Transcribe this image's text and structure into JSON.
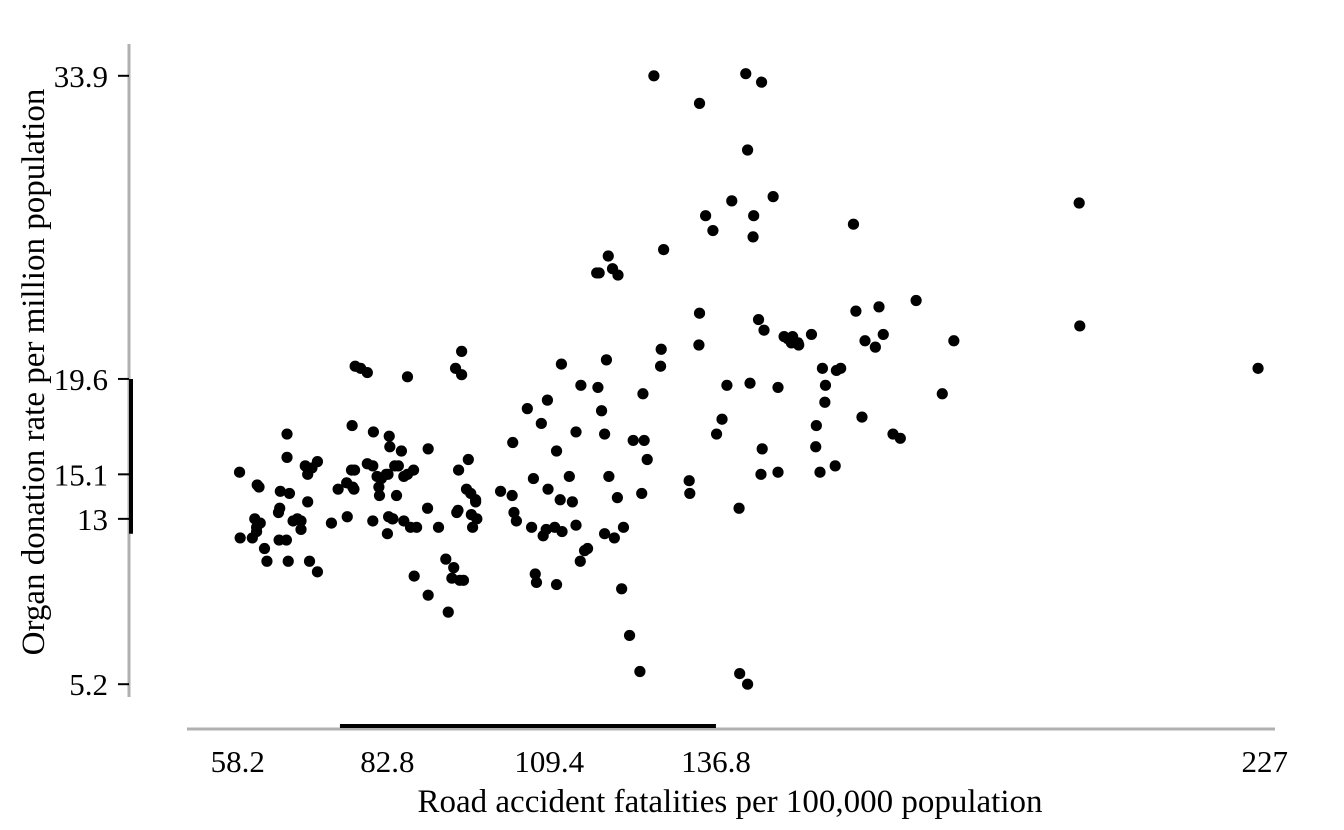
{
  "chart_data": {
    "type": "scatter",
    "xlabel": "Road accident fatalities per 100,000 population",
    "ylabel": "Organ donation rate per million population",
    "x_ticks": [
      58.2,
      82.8,
      109.4,
      136.8,
      227
    ],
    "x_tick_labels": [
      "58.2",
      "82.8",
      "109.4",
      "136.8",
      "227"
    ],
    "y_ticks": [
      5.2,
      13,
      15.1,
      19.6,
      33.9
    ],
    "y_tick_labels": [
      "5.2",
      "13",
      "15.1",
      "19.6",
      "33.9"
    ],
    "xlim": [
      40,
      230
    ],
    "ylim": [
      3.7,
      35.4
    ],
    "x_quartile_range": [
      75,
      136.8
    ],
    "y_quartile_range": [
      12.3,
      19.6
    ],
    "grid": false,
    "legend": "none",
    "point_color": "#000000",
    "axis_color": "#b0b0b0",
    "points": [
      [
        58.5,
        15.2
      ],
      [
        58.6,
        12.1
      ],
      [
        60.6,
        12.1
      ],
      [
        61.0,
        13.0
      ],
      [
        61.3,
        12.6
      ],
      [
        61.3,
        12.4
      ],
      [
        61.4,
        14.6
      ],
      [
        61.7,
        14.5
      ],
      [
        61.9,
        12.8
      ],
      [
        62.6,
        11.6
      ],
      [
        63.0,
        11.0
      ],
      [
        64.9,
        13.3
      ],
      [
        65.0,
        12.0
      ],
      [
        65.1,
        13.5
      ],
      [
        65.2,
        14.3
      ],
      [
        66.2,
        12.0
      ],
      [
        66.3,
        17.0
      ],
      [
        66.3,
        15.9
      ],
      [
        66.5,
        11.0
      ],
      [
        66.7,
        14.2
      ],
      [
        67.3,
        12.9
      ],
      [
        68.0,
        13.0
      ],
      [
        68.6,
        12.9
      ],
      [
        68.6,
        12.5
      ],
      [
        69.3,
        15.5
      ],
      [
        69.7,
        15.1
      ],
      [
        69.7,
        13.8
      ],
      [
        70.0,
        11.0
      ],
      [
        70.4,
        15.4
      ],
      [
        71.3,
        10.5
      ],
      [
        71.3,
        15.7
      ],
      [
        73.6,
        12.8
      ],
      [
        74.7,
        14.4
      ],
      [
        76.1,
        14.7
      ],
      [
        76.2,
        13.1
      ],
      [
        76.9,
        15.3
      ],
      [
        77.0,
        17.4
      ],
      [
        77.1,
        14.5
      ],
      [
        77.3,
        14.4
      ],
      [
        77.4,
        15.3
      ],
      [
        77.5,
        20.2
      ],
      [
        78.4,
        20.1
      ],
      [
        79.5,
        19.9
      ],
      [
        79.5,
        15.6
      ],
      [
        80.4,
        12.9
      ],
      [
        80.4,
        15.5
      ],
      [
        80.5,
        17.1
      ],
      [
        81.1,
        15.0
      ],
      [
        81.4,
        14.5
      ],
      [
        81.5,
        14.1
      ],
      [
        81.8,
        14.9
      ],
      [
        82.6,
        15.1
      ],
      [
        82.8,
        12.3
      ],
      [
        82.9,
        15.1
      ],
      [
        83.0,
        13.1
      ],
      [
        83.1,
        16.9
      ],
      [
        83.2,
        16.4
      ],
      [
        83.6,
        13.0
      ],
      [
        83.7,
        13.0
      ],
      [
        84.0,
        15.5
      ],
      [
        84.3,
        14.1
      ],
      [
        84.6,
        15.5
      ],
      [
        85.1,
        16.2
      ],
      [
        85.5,
        15.0
      ],
      [
        85.5,
        12.9
      ],
      [
        86.1,
        19.7
      ],
      [
        86.1,
        15.1
      ],
      [
        86.6,
        12.6
      ],
      [
        87.1,
        15.3
      ],
      [
        87.2,
        10.3
      ],
      [
        87.6,
        12.6
      ],
      [
        89.4,
        13.5
      ],
      [
        89.5,
        16.3
      ],
      [
        89.5,
        9.4
      ],
      [
        91.2,
        12.6
      ],
      [
        92.4,
        11.1
      ],
      [
        92.8,
        8.6
      ],
      [
        93.4,
        10.2
      ],
      [
        93.7,
        10.7
      ],
      [
        94.0,
        20.1
      ],
      [
        94.2,
        13.3
      ],
      [
        94.4,
        13.4
      ],
      [
        94.5,
        15.3
      ],
      [
        94.7,
        10.1
      ],
      [
        95.0,
        19.8
      ],
      [
        95.0,
        20.9
      ],
      [
        95.3,
        10.1
      ],
      [
        95.8,
        14.4
      ],
      [
        96.1,
        15.8
      ],
      [
        96.5,
        14.2
      ],
      [
        96.6,
        13.2
      ],
      [
        96.8,
        12.6
      ],
      [
        97.3,
        13.8
      ],
      [
        97.3,
        13.9
      ],
      [
        97.5,
        13.0
      ],
      [
        101.4,
        14.3
      ],
      [
        103.3,
        14.1
      ],
      [
        103.4,
        16.6
      ],
      [
        103.6,
        13.3
      ],
      [
        104.0,
        12.9
      ],
      [
        105.8,
        18.2
      ],
      [
        106.5,
        12.6
      ],
      [
        106.8,
        14.9
      ],
      [
        107.1,
        10.4
      ],
      [
        107.3,
        10.0
      ],
      [
        108.1,
        17.5
      ],
      [
        108.4,
        12.2
      ],
      [
        108.9,
        12.5
      ],
      [
        109.1,
        18.6
      ],
      [
        109.2,
        14.4
      ],
      [
        110.3,
        12.6
      ],
      [
        110.6,
        9.9
      ],
      [
        110.6,
        16.2
      ],
      [
        111.2,
        13.9
      ],
      [
        111.4,
        20.3
      ],
      [
        111.5,
        12.4
      ],
      [
        112.7,
        15.0
      ],
      [
        113.2,
        13.8
      ],
      [
        113.8,
        17.1
      ],
      [
        113.8,
        12.7
      ],
      [
        114.5,
        11.0
      ],
      [
        114.6,
        19.3
      ],
      [
        115.2,
        11.5
      ],
      [
        115.7,
        11.6
      ],
      [
        117.2,
        24.6
      ],
      [
        117.4,
        19.2
      ],
      [
        117.6,
        24.6
      ],
      [
        118.0,
        18.1
      ],
      [
        118.5,
        17.0
      ],
      [
        118.5,
        12.3
      ],
      [
        118.8,
        20.5
      ],
      [
        119.1,
        25.4
      ],
      [
        119.2,
        15.0
      ],
      [
        119.8,
        24.8
      ],
      [
        120.1,
        12.1
      ],
      [
        120.6,
        14.0
      ],
      [
        120.7,
        24.5
      ],
      [
        121.3,
        9.7
      ],
      [
        121.6,
        12.6
      ],
      [
        122.6,
        7.5
      ],
      [
        123.2,
        16.7
      ],
      [
        124.3,
        5.8
      ],
      [
        124.6,
        14.2
      ],
      [
        124.8,
        18.9
      ],
      [
        125.0,
        16.7
      ],
      [
        125.5,
        15.8
      ],
      [
        126.6,
        33.9
      ],
      [
        127.7,
        20.2
      ],
      [
        127.8,
        21.0
      ],
      [
        128.2,
        25.7
      ],
      [
        132.4,
        14.8
      ],
      [
        132.5,
        14.2
      ],
      [
        134.0,
        21.2
      ],
      [
        134.1,
        22.7
      ],
      [
        134.1,
        32.6
      ],
      [
        135.1,
        27.3
      ],
      [
        136.3,
        26.6
      ],
      [
        136.9,
        17.0
      ],
      [
        137.8,
        17.7
      ],
      [
        138.6,
        19.3
      ],
      [
        139.4,
        28.0
      ],
      [
        140.6,
        13.5
      ],
      [
        140.7,
        5.7
      ],
      [
        141.7,
        34.0
      ],
      [
        142.0,
        5.2
      ],
      [
        142.0,
        30.4
      ],
      [
        142.4,
        19.4
      ],
      [
        142.9,
        26.3
      ],
      [
        143.0,
        27.3
      ],
      [
        143.8,
        22.4
      ],
      [
        144.2,
        15.1
      ],
      [
        144.3,
        33.6
      ],
      [
        144.4,
        16.3
      ],
      [
        144.7,
        21.9
      ],
      [
        146.2,
        28.2
      ],
      [
        147.0,
        19.2
      ],
      [
        147.0,
        15.2
      ],
      [
        148.0,
        21.6
      ],
      [
        148.6,
        21.5
      ],
      [
        149.2,
        21.3
      ],
      [
        149.4,
        21.6
      ],
      [
        150.3,
        21.3
      ],
      [
        150.4,
        21.2
      ],
      [
        152.5,
        21.7
      ],
      [
        153.2,
        16.4
      ],
      [
        153.3,
        17.4
      ],
      [
        153.9,
        15.2
      ],
      [
        154.3,
        20.1
      ],
      [
        154.7,
        18.5
      ],
      [
        154.8,
        19.3
      ],
      [
        156.4,
        15.5
      ],
      [
        156.6,
        20.0
      ],
      [
        157.3,
        20.1
      ],
      [
        159.4,
        26.9
      ],
      [
        159.8,
        22.8
      ],
      [
        160.8,
        17.8
      ],
      [
        161.3,
        21.4
      ],
      [
        163.0,
        21.1
      ],
      [
        163.6,
        23.0
      ],
      [
        164.3,
        21.7
      ],
      [
        165.9,
        17.0
      ],
      [
        167.1,
        16.8
      ],
      [
        169.7,
        23.3
      ],
      [
        174.0,
        18.9
      ],
      [
        175.9,
        21.4
      ],
      [
        196.5,
        27.9
      ],
      [
        196.6,
        22.1
      ],
      [
        225.9,
        20.1
      ]
    ]
  }
}
